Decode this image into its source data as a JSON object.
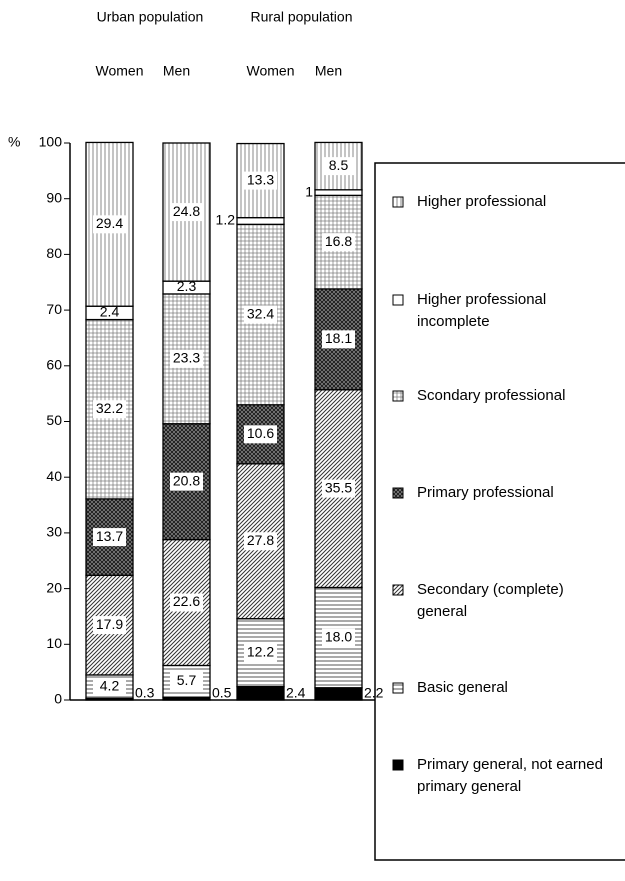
{
  "chart_data": {
    "type": "stacked-bar",
    "groups": [
      "Urban population",
      "Rural population"
    ],
    "categories": [
      "Women",
      "Men",
      "Women",
      "Men"
    ],
    "y_label": "%",
    "ylim": [
      0,
      100
    ],
    "yticks": [
      0,
      10,
      20,
      30,
      40,
      50,
      60,
      70,
      80,
      90,
      100
    ],
    "series": [
      {
        "name": "Primary general, not earned primary general",
        "color": "#000000",
        "pattern": "solid",
        "values": [
          0.3,
          0.5,
          2.4,
          2.2
        ]
      },
      {
        "name": "Basic general",
        "color": "#555555",
        "pattern": "horizontal",
        "values": [
          4.2,
          5.7,
          12.2,
          18.0
        ],
        "value_labels": [
          "4.2",
          "5.7",
          "12.2",
          "18.0"
        ]
      },
      {
        "name": "Secondary (complete) general",
        "color": "#333333",
        "pattern": "diagonal",
        "values": [
          17.9,
          22.6,
          27.8,
          35.5
        ]
      },
      {
        "name": "Primary professional",
        "color": "#222222",
        "pattern": "crosshatch",
        "values": [
          13.7,
          20.8,
          10.6,
          18.1
        ]
      },
      {
        "name": "Scondary professional",
        "color": "#777777",
        "pattern": "grid",
        "values": [
          32.2,
          23.3,
          32.4,
          16.8
        ]
      },
      {
        "name": "Higher professional incomplete",
        "color": "#ffffff",
        "pattern": "none",
        "values": [
          2.4,
          2.3,
          1.2,
          1.0
        ]
      },
      {
        "name": "Higher professional",
        "color": "#888888",
        "pattern": "vertical",
        "values": [
          29.4,
          24.8,
          13.3,
          8.5
        ]
      }
    ]
  }
}
